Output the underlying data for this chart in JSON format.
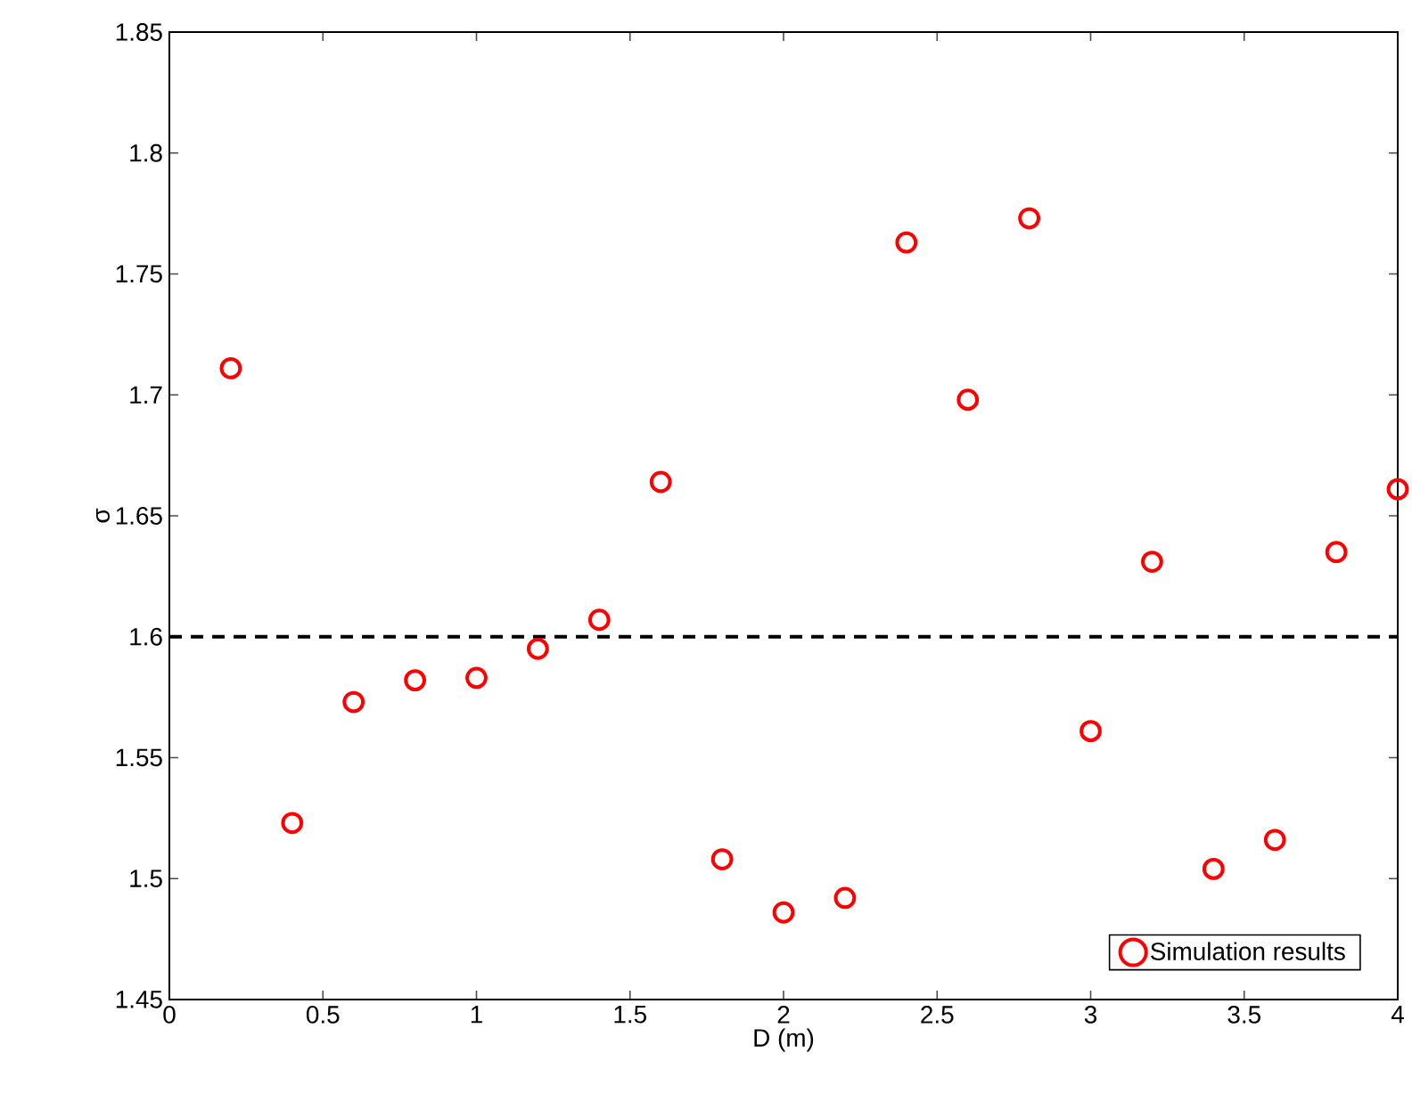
{
  "chart_data": {
    "type": "scatter",
    "xlabel": "D (m)",
    "ylabel": "σ",
    "x": [
      0.2,
      0.4,
      0.6,
      0.8,
      1.0,
      1.2,
      1.4,
      1.6,
      1.8,
      2.0,
      2.2,
      2.4,
      2.6,
      2.8,
      3.0,
      3.2,
      3.4,
      3.6,
      3.8,
      4.0
    ],
    "series": [
      {
        "name": "Simulation results",
        "color": "#ff0000",
        "values": [
          1.711,
          1.523,
          1.573,
          1.582,
          1.583,
          1.595,
          1.607,
          1.664,
          1.508,
          1.486,
          1.492,
          1.763,
          1.698,
          1.773,
          1.561,
          1.631,
          1.504,
          1.516,
          1.635,
          1.661
        ]
      }
    ],
    "xlim": [
      0,
      4
    ],
    "ylim": [
      1.45,
      1.85
    ],
    "xticks": [
      0,
      0.5,
      1,
      1.5,
      2,
      2.5,
      3,
      3.5,
      4
    ],
    "yticks": [
      1.45,
      1.5,
      1.55,
      1.6,
      1.65,
      1.7,
      1.75,
      1.8,
      1.85
    ],
    "ref_lines": [
      {
        "axis": "y",
        "value": 1.6,
        "color": "#000000",
        "line_style": "dashed"
      }
    ],
    "marker": "circle",
    "legend": "bottom right",
    "grid": false
  }
}
